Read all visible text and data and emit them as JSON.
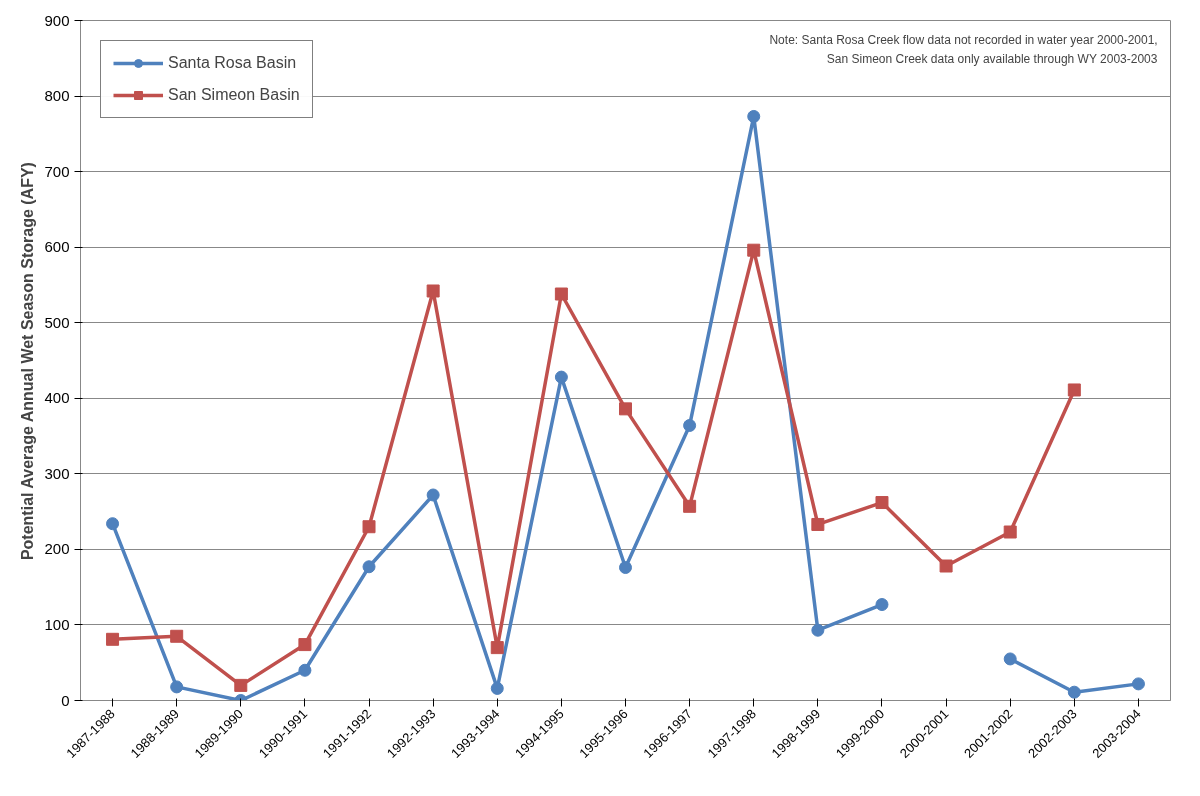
{
  "chart_data": {
    "type": "line",
    "ylabel": "Potential Average Annual Wet Season Storage (AFY)",
    "categories": [
      "1987-1988",
      "1988-1989",
      "1989-1990",
      "1990-1991",
      "1991-1992",
      "1992-1993",
      "1993-1994",
      "1994-1995",
      "1995-1996",
      "1996-1997",
      "1997-1998",
      "1998-1999",
      "1999-2000",
      "2000-2001",
      "2001-2002",
      "2002-2003",
      "2003-2004"
    ],
    "series": [
      {
        "name": "Santa Rosa Basin",
        "color": "#4f81bd",
        "marker": "circle",
        "values": [
          234,
          18,
          0,
          40,
          177,
          272,
          16,
          428,
          176,
          364,
          773,
          93,
          127,
          null,
          55,
          11,
          22
        ]
      },
      {
        "name": "San Simeon Basin",
        "color": "#c0504d",
        "marker": "square",
        "values": [
          81,
          85,
          20,
          74,
          230,
          542,
          70,
          538,
          386,
          257,
          596,
          233,
          262,
          178,
          223,
          411,
          null
        ]
      }
    ],
    "ylim": [
      0,
      900
    ],
    "yticks": [
      0,
      100,
      200,
      300,
      400,
      500,
      600,
      700,
      800,
      900
    ],
    "grid": "y",
    "legend": "top left",
    "line_style": "solid",
    "annotations": [
      "Note: Santa Rosa Creek flow data not recorded in water year 2000-2001,\nSan Simeon Creek data only available through WY 2003-2003"
    ]
  }
}
